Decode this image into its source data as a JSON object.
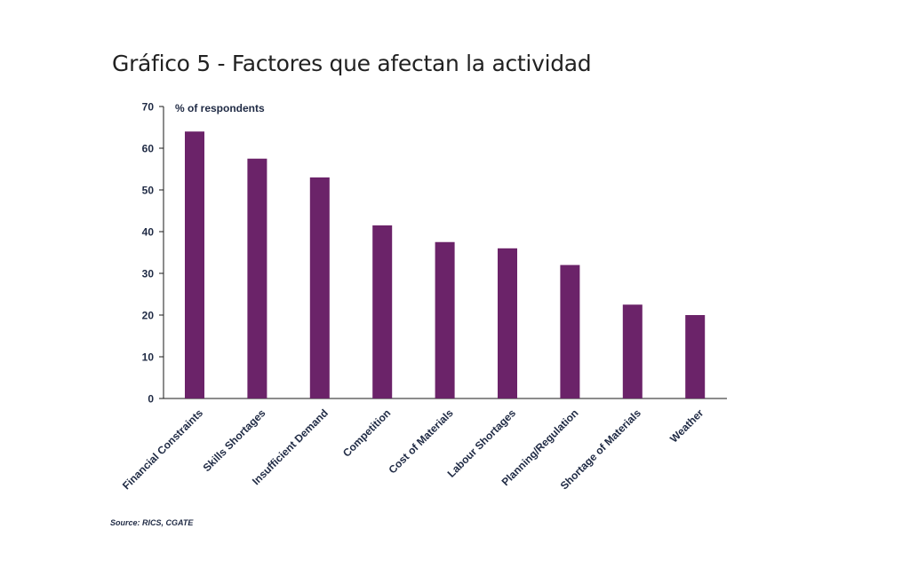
{
  "chart_data": {
    "type": "bar",
    "title": "Gráfico 5 - Factores que afectan la actividad",
    "ylabel": "% of respondents",
    "xlabel": "",
    "categories": [
      "Financial Constraints",
      "Skills Shortages",
      "Insufficient Demand",
      "Competition",
      "Cost of Materials",
      "Labour Shortages",
      "Planning/Regulation",
      "Shortage of Materials",
      "Weather"
    ],
    "values": [
      64,
      57.5,
      53,
      41.5,
      37.5,
      36,
      32,
      22.5,
      20
    ],
    "ylim": [
      0,
      70
    ],
    "yticks": [
      "0",
      "10",
      "20",
      "30",
      "40",
      "50",
      "60",
      "70"
    ],
    "bar_color": "#6b2369",
    "grid": false,
    "legend": "none",
    "source": "Source: RICS, CGATE"
  }
}
